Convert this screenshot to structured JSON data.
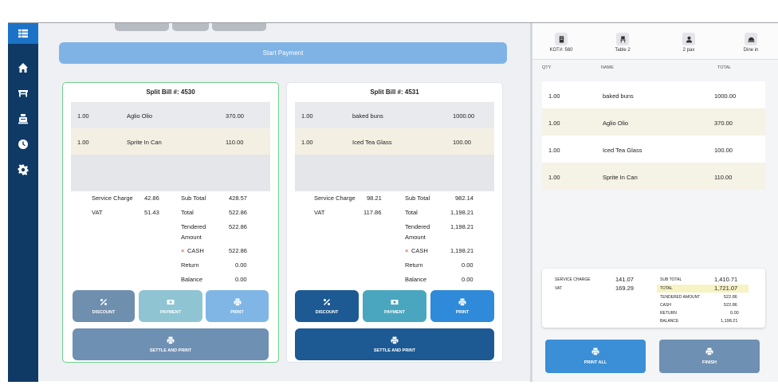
{
  "sidebar": {
    "items": [
      {
        "icon": "grid-menu-icon"
      },
      {
        "icon": "home-icon"
      },
      {
        "icon": "table-icon"
      },
      {
        "icon": "cash-register-icon"
      },
      {
        "icon": "clock-icon"
      },
      {
        "icon": "gear-icon"
      }
    ]
  },
  "main": {
    "start_payment_label": "Start Payment",
    "bills": [
      {
        "title": "Split Bill #: 4530",
        "items": [
          {
            "qty": "1.00",
            "name": "Aglio Olio",
            "amount": "370.00"
          },
          {
            "qty": "1.00",
            "name": "Sprite In Can",
            "amount": "110.00"
          }
        ],
        "service_charge_label": "Service Charge",
        "service_charge": "42.86",
        "vat_label": "VAT",
        "vat": "51.43",
        "sub_total_label": "Sub Total",
        "sub_total": "428.57",
        "total_label": "Total",
        "total": "522.86",
        "tendered_label_1": "Tendered",
        "tendered_label_2": "Amount",
        "tendered": "522.86",
        "cash_x": "×",
        "cash_label": "CASH",
        "cash": "522.86",
        "return_label": "Return",
        "return": "0.00",
        "balance_label": "Balance",
        "balance": "0.00",
        "discount_label": "DISCOUNT",
        "payment_label": "PAYMENT",
        "print_label": "PRINT",
        "settle_label": "SETTLE AND PRINT"
      },
      {
        "title": "Split Bill #: 4531",
        "items": [
          {
            "qty": "1.00",
            "name": "baked buns",
            "amount": "1000.00"
          },
          {
            "qty": "1.00",
            "name": "Iced Tea Glass",
            "amount": "100.00"
          }
        ],
        "service_charge_label": "Service Charge",
        "service_charge": "98.21",
        "vat_label": "VAT",
        "vat": "117.86",
        "sub_total_label": "Sub Total",
        "sub_total": "982.14",
        "total_label": "Total",
        "total": "1,198.21",
        "tendered_label_1": "Tendered",
        "tendered_label_2": "Amount",
        "tendered": "1,198.21",
        "cash_x": "×",
        "cash_label": "CASH",
        "cash": "1,198.21",
        "return_label": "Return",
        "return": "0.00",
        "balance_label": "Balance",
        "balance": "0.00",
        "discount_label": "DISCOUNT",
        "payment_label": "PAYMENT",
        "print_label": "PRINT",
        "settle_label": "SETTLE AND PRINT"
      }
    ]
  },
  "right": {
    "info": [
      {
        "label": "KOT#: 560",
        "icon": "receipt-icon"
      },
      {
        "label": "Table 2",
        "icon": "chair-icon"
      },
      {
        "label": "2 pax",
        "icon": "person-icon"
      },
      {
        "label": "Dine in",
        "icon": "dine-in-icon"
      }
    ],
    "headers": {
      "qty": "QTY",
      "name": "NAME",
      "total": "TOTAL"
    },
    "items": [
      {
        "qty": "1.00",
        "name": "baked buns",
        "total": "1000.00"
      },
      {
        "qty": "1.00",
        "name": "Aglio Olio",
        "total": "370.00"
      },
      {
        "qty": "1.00",
        "name": "Iced Tea Glass",
        "total": "100.00"
      },
      {
        "qty": "1.00",
        "name": "Sprite In Can",
        "total": "110.00"
      }
    ],
    "totals": {
      "service_charge_label": "SERVICE CHARGE",
      "service_charge": "141.07",
      "vat_label": "VAT",
      "vat": "169.29",
      "sub_total_label": "SUB TOTAL",
      "sub_total": "1,410.71",
      "total_label": "TOTAL",
      "total": "1,721.07",
      "tendered_label": "TENDERED AMOUNT",
      "tendered": "522.86",
      "cash_label": "CASH",
      "cash": "522.86",
      "return_label": "RETURN",
      "return": "0.00",
      "balance_label": "BALANCE",
      "balance": "1,198.21"
    },
    "print_all_label": "PRINT ALL",
    "finish_label": "FINISH"
  },
  "colors": {
    "sidebar": "#0f3a66",
    "accent_blue": "#3b8fd6",
    "card1_discount": "#6f8fae",
    "card1_payment": "#8fc4d2",
    "card1_print": "#7fb6e6",
    "card1_settle": "#6e90b3",
    "card2_dark": "#1d5a94",
    "card2_teal": "#4aa6bf",
    "card2_print": "#2f8ad9",
    "finish": "#6e90b3",
    "total_highlight": "#f6f3c4",
    "cash_x": "#d93030"
  }
}
